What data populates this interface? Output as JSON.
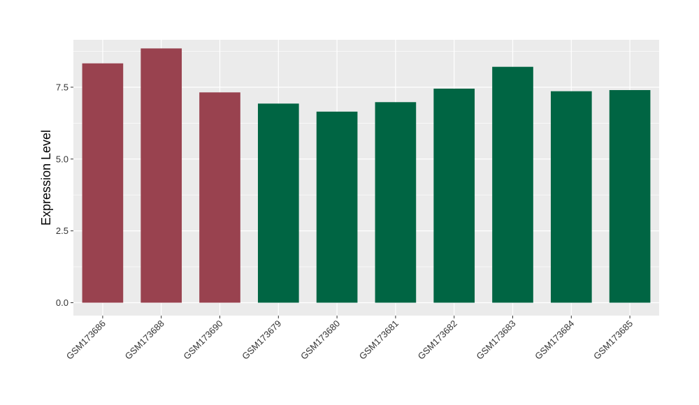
{
  "chart_data": {
    "type": "bar",
    "title": "",
    "xlabel": "",
    "ylabel": "Expression Level",
    "ylim": [
      -0.45,
      9.15
    ],
    "yticks": [
      0.0,
      2.5,
      5.0,
      7.5
    ],
    "ytick_labels": [
      "0.0",
      "2.5",
      "5.0",
      "7.5"
    ],
    "grid": true,
    "legend": "none",
    "categories": [
      "GSM173686",
      "GSM173688",
      "GSM173690",
      "GSM173679",
      "GSM173680",
      "GSM173681",
      "GSM173682",
      "GSM173683",
      "GSM173684",
      "GSM173685"
    ],
    "values": [
      8.33,
      8.85,
      7.32,
      6.93,
      6.65,
      6.98,
      7.45,
      8.21,
      7.36,
      7.4
    ],
    "bar_colors": [
      "#99424f",
      "#99424f",
      "#99424f",
      "#006543",
      "#006543",
      "#006543",
      "#006543",
      "#006543",
      "#006543",
      "#006543"
    ],
    "panel_background": "#ebebeb",
    "grid_color": "#ffffff"
  }
}
